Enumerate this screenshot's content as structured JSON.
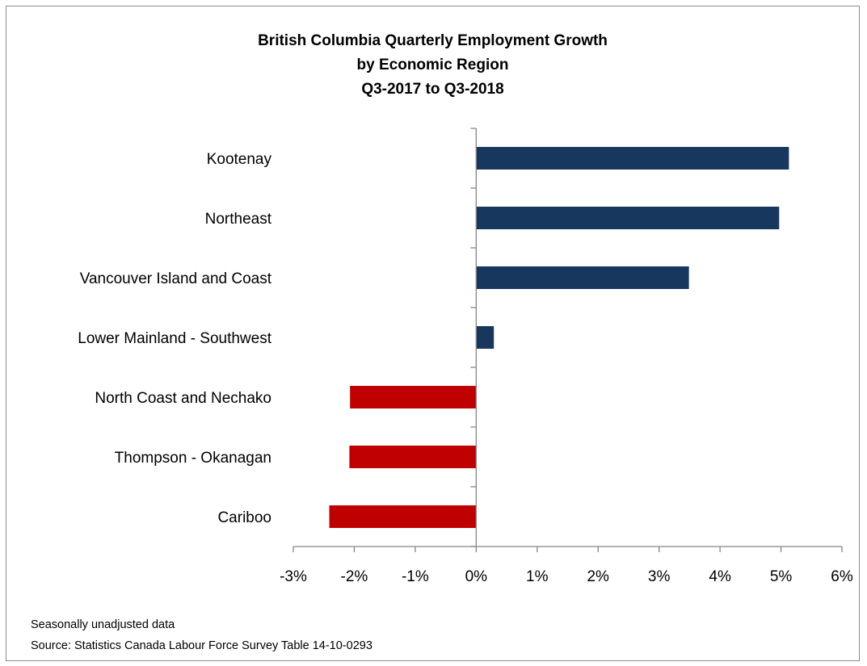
{
  "chart_data": {
    "type": "bar",
    "orientation": "horizontal",
    "title": [
      "British Columbia Quarterly Employment Growth",
      "by Economic Region",
      "Q3-2017 to Q3-2018"
    ],
    "categories": [
      "Kootenay",
      "Northeast",
      "Vancouver Island and Coast",
      "Lower Mainland - Southwest",
      "North Coast and Nechako",
      "Thompson - Okanagan",
      "Cariboo"
    ],
    "values": [
      5.13,
      4.97,
      3.49,
      0.29,
      -2.07,
      -2.08,
      -2.41
    ],
    "value_unit": "%",
    "xlim": [
      -3,
      6
    ],
    "xticks": [
      -3,
      -2,
      -1,
      0,
      1,
      2,
      3,
      4,
      5,
      6
    ],
    "xtick_labels": [
      "-3%",
      "-2%",
      "-1%",
      "0%",
      "1%",
      "2%",
      "3%",
      "4%",
      "5%",
      "6%"
    ],
    "grid": false,
    "legend": "none",
    "colors": {
      "positive": "#17375e",
      "negative": "#c00000"
    }
  },
  "notes": {
    "line1": "Seasonally unadjusted data",
    "line2": "Source: Statistics Canada Labour Force Survey Table 14-10-0293"
  }
}
